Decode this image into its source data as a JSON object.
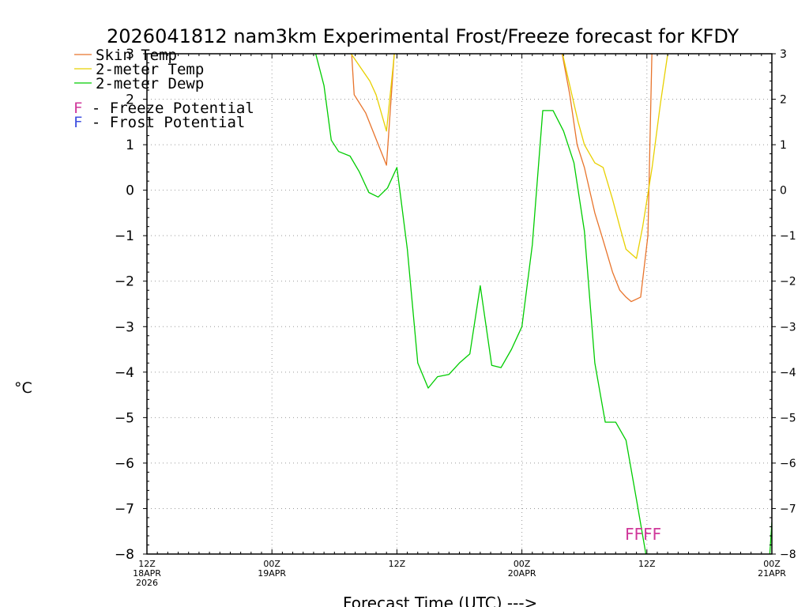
{
  "colors": {
    "skin": "#e8742c",
    "temp": "#e8d000",
    "dewp": "#00cc00",
    "freeze": "#d0379a",
    "frost": "#4050e0",
    "grid": "#999999"
  },
  "chart_data": {
    "type": "line",
    "title": "2026041812 nam3km Experimental Frost/Freeze forecast for KFDY",
    "ylabel": "°C",
    "xlabel": "Forecast Time (UTC) --->",
    "ylim": [
      -8,
      3
    ],
    "xlim": [
      0,
      60
    ],
    "yticks": [
      3,
      2,
      1,
      0,
      -1,
      -2,
      -3,
      -4,
      -5,
      -6,
      -7,
      -8
    ],
    "ytick_labels": [
      "3",
      "2",
      "1",
      "0",
      "−1",
      "−2",
      "−3",
      "−4",
      "−5",
      "−6",
      "−7",
      "−8"
    ],
    "xticks": [
      {
        "x": 0,
        "lines": [
          "12Z",
          "18APR",
          "2026"
        ]
      },
      {
        "x": 12,
        "lines": [
          "00Z",
          "19APR"
        ]
      },
      {
        "x": 24,
        "lines": [
          "12Z"
        ]
      },
      {
        "x": 36,
        "lines": [
          "00Z",
          "20APR"
        ]
      },
      {
        "x": 48,
        "lines": [
          "12Z"
        ]
      },
      {
        "x": 60,
        "lines": [
          "00Z",
          "21APR"
        ]
      }
    ],
    "legend": [
      {
        "key": "skin",
        "label": "Skin Temp"
      },
      {
        "key": "temp",
        "label": "2-meter Temp"
      },
      {
        "key": "dewp",
        "label": "2-meter Dewp"
      }
    ],
    "potential_legend": [
      {
        "key": "freeze",
        "letter": "F",
        "label": " - Freeze Potential"
      },
      {
        "key": "frost",
        "letter": "F",
        "label": " - Frost Potential"
      }
    ],
    "freeze_flags": {
      "text": "FFFF",
      "x": 45.9,
      "y": -7.55
    },
    "series": [
      {
        "name": "Skin Temp",
        "key": "skin",
        "segments": [
          {
            "x": [
              19.6,
              19.9,
              21.0,
              23.0,
              23.8
            ],
            "y": [
              3.2,
              2.1,
              1.7,
              0.55,
              3.2
            ]
          },
          {
            "x": [
              39.7,
              40.6,
              41.3,
              42.0,
              43.0,
              43.8,
              44.7,
              45.4,
              46.0,
              46.5,
              47.4,
              48.1,
              48.5
            ],
            "y": [
              3.2,
              2.1,
              1.0,
              0.5,
              -0.5,
              -1.1,
              -1.8,
              -2.2,
              -2.35,
              -2.45,
              -2.35,
              -1.0,
              3.2
            ]
          }
        ]
      },
      {
        "name": "2-meter Temp",
        "key": "temp",
        "segments": [
          {
            "x": [
              19.6,
              21.4,
              22.0,
              23.0,
              23.8
            ],
            "y": [
              3.0,
              2.4,
              2.1,
              1.3,
              3.1
            ]
          },
          {
            "x": [
              39.7,
              40.6,
              41.4,
              42.0,
              43.0,
              43.8,
              44.7,
              45.4,
              46.0,
              47.0,
              47.6,
              48.5,
              49.3,
              50.0
            ],
            "y": [
              3.2,
              2.3,
              1.5,
              1.0,
              0.6,
              0.5,
              -0.2,
              -0.8,
              -1.3,
              -1.5,
              -0.8,
              0.5,
              1.9,
              3.0
            ]
          }
        ]
      },
      {
        "name": "2-meter Dewp",
        "key": "dewp",
        "segments": [
          {
            "x": [
              16.2,
              17.0,
              17.7,
              18.4,
              19.5,
              20.4,
              21.3,
              22.2,
              23.1,
              24.0,
              25.0,
              26.0,
              27.0,
              27.9,
              29.0,
              30.0,
              31.0,
              32.0,
              33.1,
              34.0,
              35.0,
              36.0,
              37.0,
              38.0,
              39.0,
              40.0,
              41.0,
              42.0,
              43.0,
              44.0,
              45.0,
              46.0,
              47.0,
              47.9,
              48.3
            ],
            "y": [
              3.0,
              2.3,
              1.1,
              0.85,
              0.75,
              0.4,
              -0.05,
              -0.15,
              0.05,
              0.5,
              -1.3,
              -3.8,
              -4.35,
              -4.1,
              -4.05,
              -3.8,
              -3.6,
              -2.1,
              -3.85,
              -3.9,
              -3.5,
              -3.0,
              -1.2,
              1.75,
              1.75,
              1.3,
              0.6,
              -0.9,
              -3.8,
              -5.1,
              -5.1,
              -5.5,
              -6.8,
              -8.0,
              -8.0
            ]
          },
          {
            "x": [
              59.8,
              60.0
            ],
            "y": [
              -8.0,
              -7.3
            ]
          }
        ]
      }
    ]
  }
}
